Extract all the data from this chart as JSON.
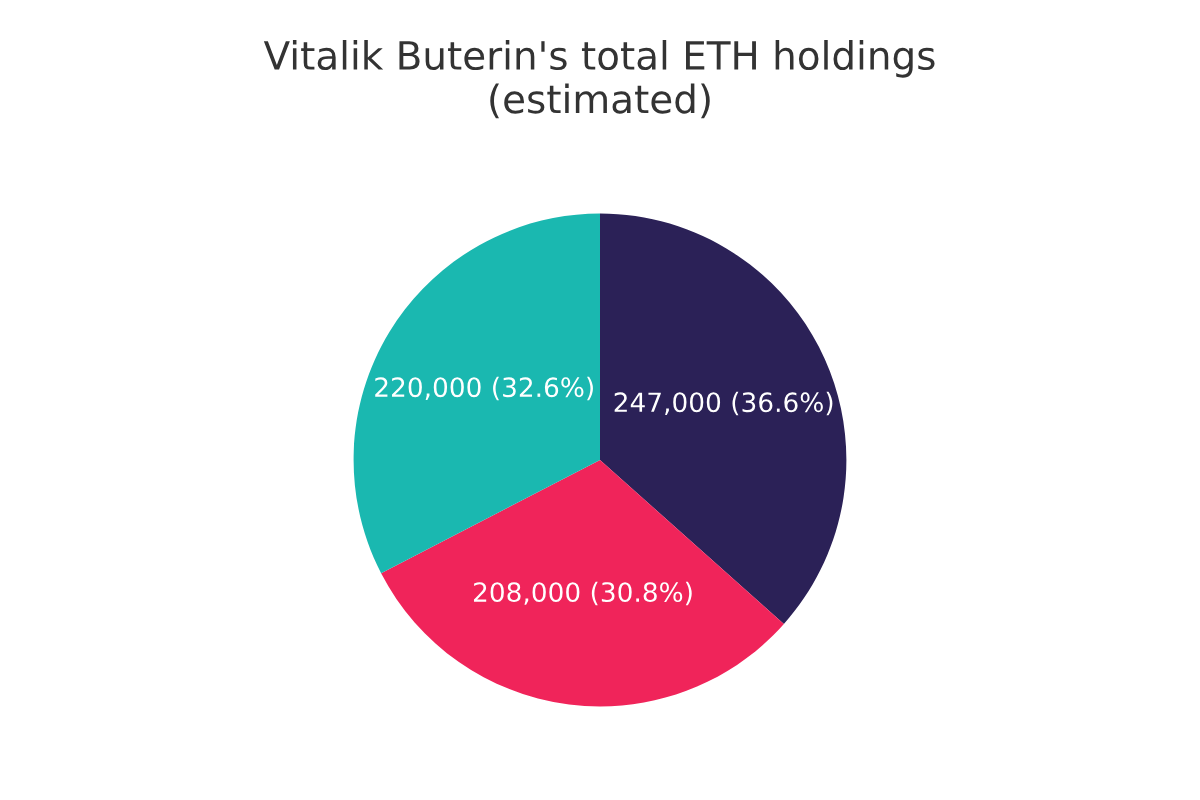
{
  "chart_data": {
    "type": "pie",
    "title": "Vitalik Buterin's total ETH holdings\n(estimated)",
    "categories": [
      null,
      null,
      null
    ],
    "values": [
      247000,
      208000,
      220000
    ],
    "colors": [
      "#2b2157",
      "#f0245a",
      "#1ab8b0"
    ],
    "value_labels": [
      "247,000 (36.6%)",
      "208,000 (30.8%)",
      "220,000 (32.6%)"
    ]
  }
}
